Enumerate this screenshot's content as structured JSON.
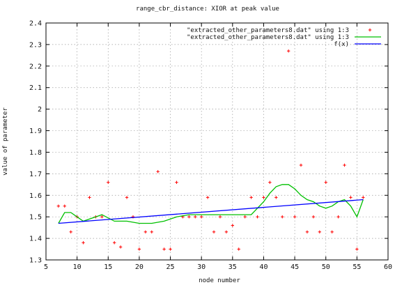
{
  "chart_data": {
    "type": "scatter",
    "title": "range_cbr_distance: XIOR at peak value",
    "xlabel": "node number",
    "ylabel": "value of parameter",
    "xlim": [
      5,
      60
    ],
    "ylim": [
      1.3,
      2.4
    ],
    "x_ticks": [
      5,
      10,
      15,
      20,
      25,
      30,
      35,
      40,
      45,
      50,
      55,
      60
    ],
    "y_ticks": [
      "1.3",
      "1.4",
      "1.5",
      "1.6",
      "1.7",
      "1.8",
      "1.9",
      "2",
      "2.1",
      "2.2",
      "2.3",
      "2.4"
    ],
    "grid": true,
    "legend_position": "top-right",
    "series": [
      {
        "name": "\"extracted_other_parameters8.dat\" using 1:3",
        "kind": "points",
        "color": "#ff0000",
        "x": [
          7,
          8,
          9,
          10,
          11,
          12,
          13,
          14,
          15,
          16,
          17,
          18,
          19,
          20,
          21,
          22,
          23,
          24,
          25,
          26,
          27,
          28,
          29,
          30,
          31,
          32,
          33,
          34,
          35,
          36,
          37,
          38,
          39,
          40,
          41,
          42,
          43,
          44,
          45,
          46,
          47,
          48,
          49,
          50,
          51,
          52,
          53,
          54,
          55,
          56
        ],
        "y": [
          1.55,
          1.55,
          1.43,
          1.5,
          1.38,
          1.59,
          1.5,
          1.5,
          1.66,
          1.38,
          1.36,
          1.59,
          1.5,
          1.35,
          1.43,
          1.43,
          1.71,
          1.35,
          1.35,
          1.66,
          1.5,
          1.5,
          1.5,
          1.5,
          1.59,
          1.43,
          1.5,
          1.43,
          1.46,
          1.35,
          1.5,
          1.59,
          1.5,
          1.59,
          1.66,
          1.59,
          1.5,
          2.27,
          1.5,
          1.74,
          1.43,
          1.5,
          1.43,
          1.66,
          1.43,
          1.5,
          1.74,
          1.59,
          1.35,
          1.59
        ]
      },
      {
        "name": "\"extracted_other_parameters8.dat\" using 1:3",
        "kind": "line",
        "color": "#00c000",
        "x": [
          7,
          8,
          9,
          10,
          11,
          12,
          13,
          14,
          16,
          18,
          20,
          22,
          24,
          26,
          28,
          30,
          32,
          34,
          36,
          38,
          40,
          41,
          42,
          43,
          44,
          45,
          46,
          47,
          48,
          49,
          50,
          51,
          52,
          53,
          54,
          55,
          56
        ],
        "y": [
          1.47,
          1.52,
          1.52,
          1.5,
          1.48,
          1.49,
          1.5,
          1.51,
          1.48,
          1.48,
          1.47,
          1.47,
          1.48,
          1.5,
          1.51,
          1.51,
          1.51,
          1.51,
          1.51,
          1.51,
          1.57,
          1.61,
          1.64,
          1.65,
          1.65,
          1.63,
          1.6,
          1.58,
          1.57,
          1.55,
          1.54,
          1.55,
          1.57,
          1.58,
          1.55,
          1.5,
          1.58
        ]
      },
      {
        "name": "f(x)",
        "kind": "line",
        "color": "#0000ff",
        "x": [
          7,
          56
        ],
        "y": [
          1.47,
          1.58
        ]
      }
    ]
  }
}
